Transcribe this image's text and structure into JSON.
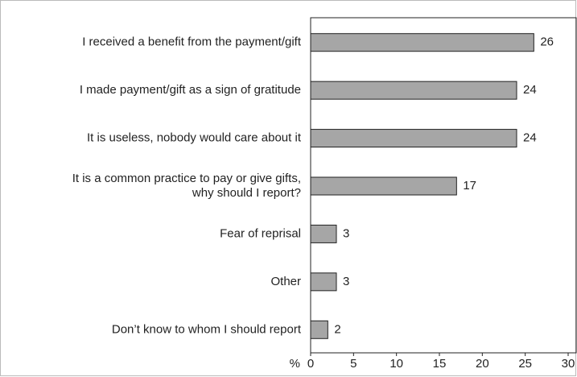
{
  "chart_data": {
    "type": "barh",
    "categories": [
      "I received a benefit from the payment/gift",
      "I made payment/gift as a sign of gratitude",
      "It is useless, nobody would care about it",
      "It is a common practice to pay or give gifts,\nwhy should I report?",
      "Fear of reprisal",
      "Other",
      "Don’t know to whom I should report"
    ],
    "values": [
      26,
      24,
      24,
      17,
      3,
      3,
      2
    ],
    "color": "#a6a6a6",
    "x_label": "%",
    "xlim": [
      0,
      30
    ],
    "xticks": [
      0,
      5,
      10,
      15,
      20,
      25,
      30
    ]
  }
}
